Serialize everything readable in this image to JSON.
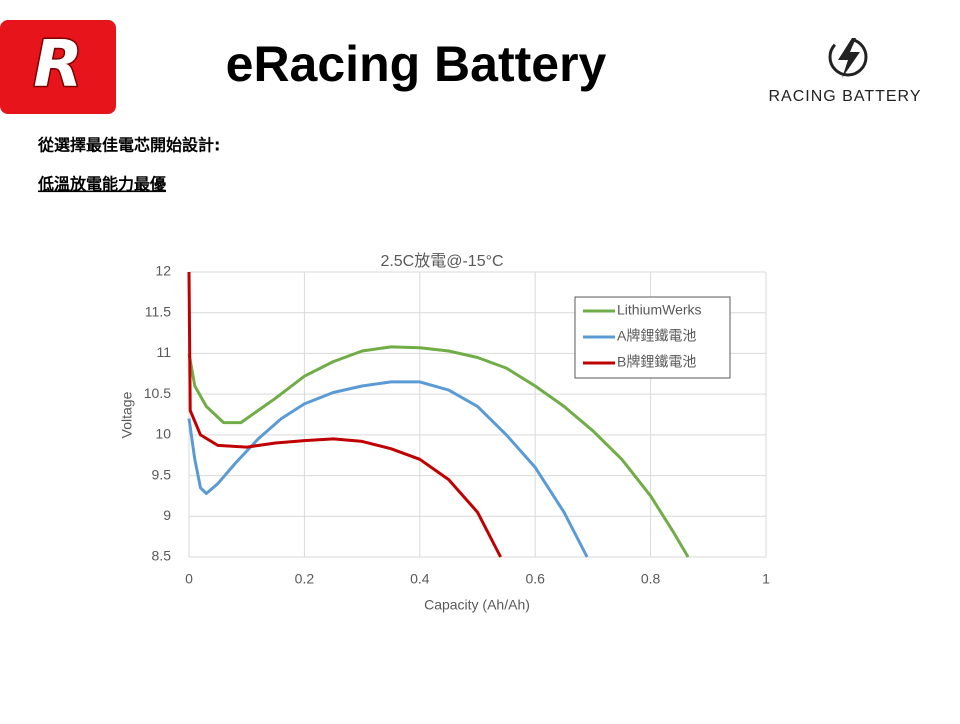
{
  "header": {
    "logo_letter": "R",
    "title": "eRacing Battery",
    "brand": "RACING BATTERY"
  },
  "bullets": [
    "從選擇最佳電芯開始設計:",
    "低溫放電能力最優"
  ],
  "chart_data": {
    "type": "line",
    "title": "2.5C放電@-15°C",
    "xlabel": "Capacity (Ah/Ah)",
    "ylabel": "Voltage",
    "xlim": [
      0,
      1
    ],
    "xticks": [
      0,
      0.2,
      0.4,
      0.6,
      0.8,
      1
    ],
    "ylim": [
      8.5,
      12
    ],
    "yticks": [
      8.5,
      9,
      9.5,
      10,
      10.5,
      11,
      11.5,
      12
    ],
    "grid": true,
    "legend": "upper right",
    "series": [
      {
        "name": "LithiumWerks",
        "color": "#70ad47",
        "x": [
          0,
          0.01,
          0.03,
          0.06,
          0.09,
          0.15,
          0.2,
          0.25,
          0.3,
          0.35,
          0.4,
          0.45,
          0.5,
          0.55,
          0.6,
          0.65,
          0.7,
          0.75,
          0.8,
          0.84,
          0.865
        ],
        "values": [
          11.0,
          10.6,
          10.35,
          10.15,
          10.15,
          10.45,
          10.72,
          10.9,
          11.03,
          11.08,
          11.07,
          11.03,
          10.95,
          10.82,
          10.6,
          10.35,
          10.05,
          9.7,
          9.25,
          8.8,
          8.5
        ]
      },
      {
        "name": "A牌鋰鐵電池",
        "color": "#5b9bd5",
        "x": [
          0,
          0.01,
          0.02,
          0.03,
          0.05,
          0.08,
          0.12,
          0.16,
          0.2,
          0.25,
          0.3,
          0.35,
          0.4,
          0.45,
          0.5,
          0.55,
          0.6,
          0.65,
          0.69
        ],
        "values": [
          10.2,
          9.7,
          9.35,
          9.28,
          9.4,
          9.65,
          9.95,
          10.2,
          10.38,
          10.52,
          10.6,
          10.65,
          10.65,
          10.55,
          10.35,
          10.0,
          9.6,
          9.05,
          8.5
        ]
      },
      {
        "name": "B牌鋰鐵電池",
        "color": "#c00000",
        "x": [
          0,
          0.002,
          0.02,
          0.05,
          0.1,
          0.15,
          0.2,
          0.25,
          0.3,
          0.35,
          0.4,
          0.45,
          0.5,
          0.54
        ],
        "values": [
          12,
          10.3,
          10.0,
          9.87,
          9.85,
          9.9,
          9.93,
          9.95,
          9.92,
          9.83,
          9.7,
          9.45,
          9.05,
          8.5
        ]
      }
    ]
  }
}
